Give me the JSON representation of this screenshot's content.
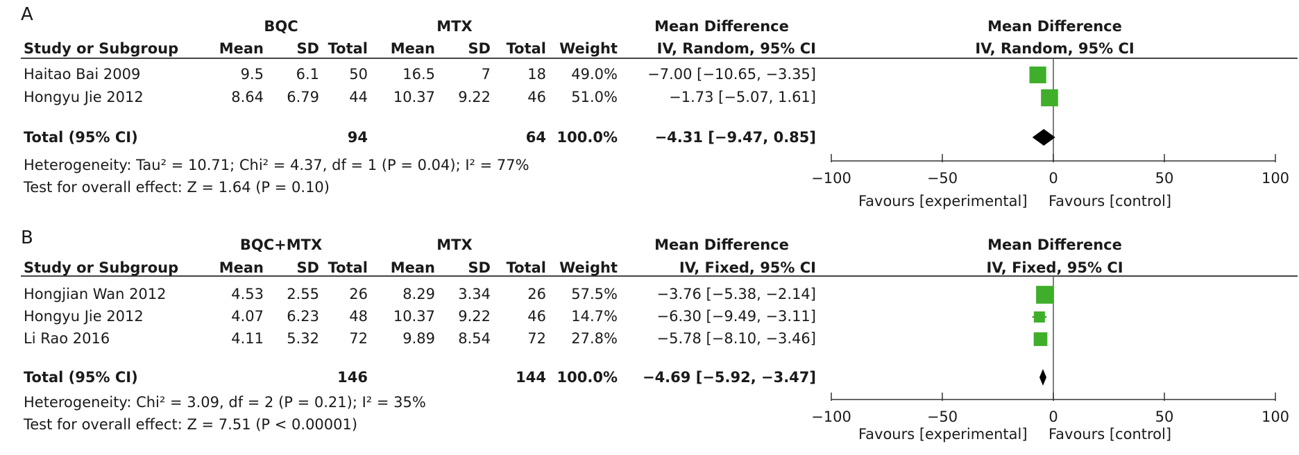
{
  "chart_data": [
    {
      "type": "forest",
      "panel_label": "A",
      "group1_label": "BQC",
      "group2_label": "MTX",
      "effect_header": "Mean Difference",
      "effect_method": "IV, Random, 95% CI",
      "col_study": "Study or Subgroup",
      "col_mean": "Mean",
      "col_sd": "SD",
      "col_total": "Total",
      "col_weight": "Weight",
      "studies": [
        {
          "name": "Haitao Bai 2009",
          "g1_mean": "9.5",
          "g1_sd": "6.1",
          "g1_total": "50",
          "g2_mean": "16.5",
          "g2_sd": "7",
          "g2_total": "18",
          "weight": "49.0%",
          "ci_text": "−7.00 [−10.65, −3.35]",
          "md": -7.0,
          "lo": -10.65,
          "hi": -3.35,
          "w": 49.0
        },
        {
          "name": "Hongyu Jie 2012",
          "g1_mean": "8.64",
          "g1_sd": "6.79",
          "g1_total": "44",
          "g2_mean": "10.37",
          "g2_sd": "9.22",
          "g2_total": "46",
          "weight": "51.0%",
          "ci_text": "−1.73 [−5.07, 1.61]",
          "md": -1.73,
          "lo": -5.07,
          "hi": 1.61,
          "w": 51.0
        }
      ],
      "total": {
        "label": "Total (95% CI)",
        "g1_total": "94",
        "g2_total": "64",
        "weight": "100.0%",
        "ci_text": "−4.31 [−9.47, 0.85]",
        "md": -4.31,
        "lo": -9.47,
        "hi": 0.85
      },
      "heterogeneity": "Heterogeneity: Tau² = 10.71; Chi² = 4.37, df = 1 (P = 0.04); I² = 77%",
      "overall_effect": "Test for overall effect: Z = 1.64 (P = 0.10)",
      "x_range": [
        -100,
        100
      ],
      "x_ticks": [
        -100,
        -50,
        0,
        50,
        100
      ],
      "x_tick_labels": [
        "−100",
        "−50",
        "0",
        "50",
        "100"
      ],
      "favours_left": "Favours [experimental]",
      "favours_right": "Favours [control]",
      "marker_color": "#3fae2a",
      "diamond_color": "#000000"
    },
    {
      "type": "forest",
      "panel_label": "B",
      "group1_label": "BQC+MTX",
      "group2_label": "MTX",
      "effect_header": "Mean Difference",
      "effect_method": "IV, Fixed, 95% CI",
      "col_study": "Study or Subgroup",
      "col_mean": "Mean",
      "col_sd": "SD",
      "col_total": "Total",
      "col_weight": "Weight",
      "studies": [
        {
          "name": "Hongjian Wan 2012",
          "g1_mean": "4.53",
          "g1_sd": "2.55",
          "g1_total": "26",
          "g2_mean": "8.29",
          "g2_sd": "3.34",
          "g2_total": "26",
          "weight": "57.5%",
          "ci_text": "−3.76 [−5.38, −2.14]",
          "md": -3.76,
          "lo": -5.38,
          "hi": -2.14,
          "w": 57.5
        },
        {
          "name": "Hongyu Jie 2012",
          "g1_mean": "4.07",
          "g1_sd": "6.23",
          "g1_total": "48",
          "g2_mean": "10.37",
          "g2_sd": "9.22",
          "g2_total": "46",
          "weight": "14.7%",
          "ci_text": "−6.30 [−9.49, −3.11]",
          "md": -6.3,
          "lo": -9.49,
          "hi": -3.11,
          "w": 14.7
        },
        {
          "name": "Li Rao 2016",
          "g1_mean": "4.11",
          "g1_sd": "5.32",
          "g1_total": "72",
          "g2_mean": "9.89",
          "g2_sd": "8.54",
          "g2_total": "72",
          "weight": "27.8%",
          "ci_text": "−5.78 [−8.10, −3.46]",
          "md": -5.78,
          "lo": -8.1,
          "hi": -3.46,
          "w": 27.8
        }
      ],
      "total": {
        "label": "Total (95% CI)",
        "g1_total": "146",
        "g2_total": "144",
        "weight": "100.0%",
        "ci_text": "−4.69 [−5.92, −3.47]",
        "md": -4.69,
        "lo": -5.92,
        "hi": -3.47
      },
      "heterogeneity": "Heterogeneity: Chi² = 3.09, df = 2 (P = 0.21); I² = 35%",
      "overall_effect": "Test for overall effect: Z = 7.51 (P < 0.00001)",
      "x_range": [
        -100,
        100
      ],
      "x_ticks": [
        -100,
        -50,
        0,
        50,
        100
      ],
      "x_tick_labels": [
        "−100",
        "−50",
        "0",
        "50",
        "100"
      ],
      "favours_left": "Favours [experimental]",
      "favours_right": "Favours [control]",
      "marker_color": "#3fae2a",
      "diamond_color": "#000000"
    }
  ]
}
